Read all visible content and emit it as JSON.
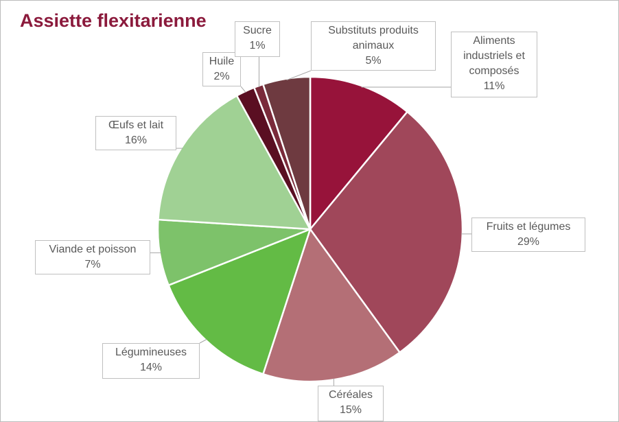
{
  "chart_data": {
    "type": "pie",
    "title": "Assiette flexitarienne",
    "categories": [
      "Aliments industriels et composés",
      "Fruits et légumes",
      "Céréales",
      "Légumineuses",
      "Viande et poisson",
      "Œufs et lait",
      "Huile",
      "Sucre",
      "Substituts produits animaux"
    ],
    "values": [
      11,
      29,
      15,
      14,
      7,
      16,
      2,
      1,
      5
    ],
    "value_labels": [
      "11%",
      "29%",
      "15%",
      "14%",
      "7%",
      "16%",
      "2%",
      "1%",
      "5%"
    ],
    "colors": [
      "#97133a",
      "#a0475a",
      "#b46f76",
      "#63bb45",
      "#7dc26a",
      "#a0d194",
      "#5a0f22",
      "#7a2a3a",
      "#6e3a40"
    ]
  }
}
